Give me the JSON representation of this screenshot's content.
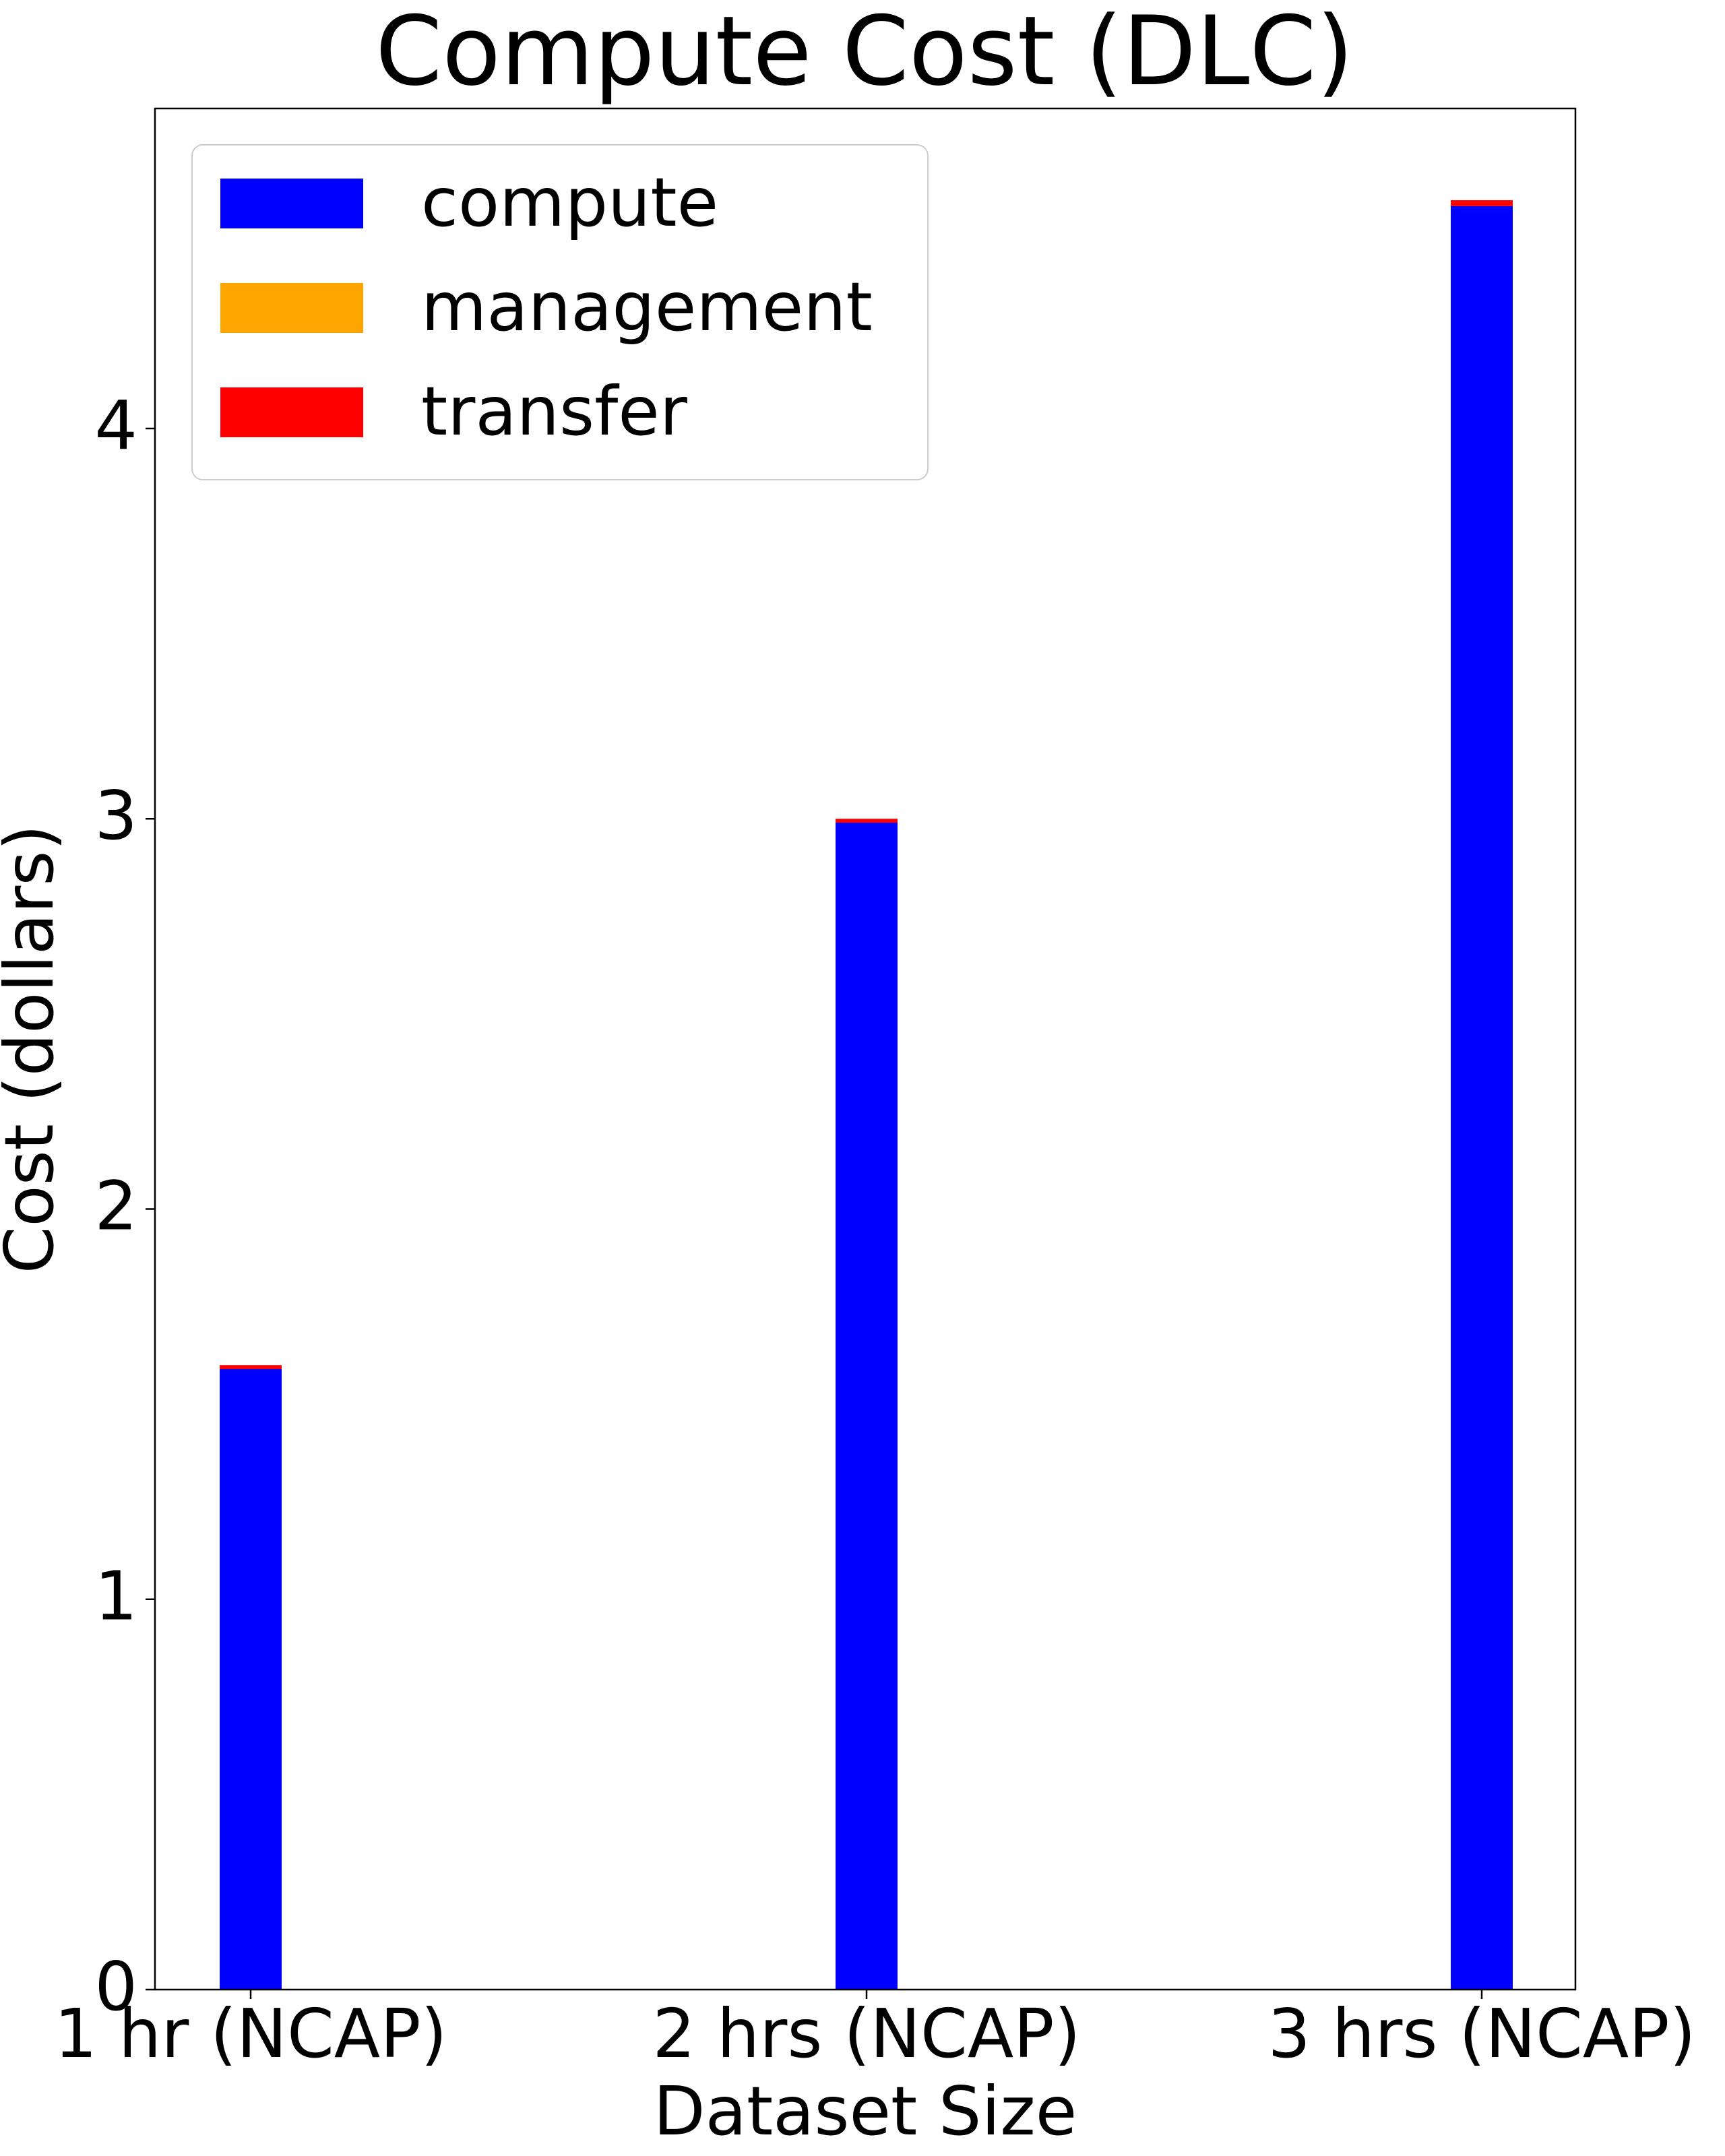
{
  "chart_data": {
    "type": "bar",
    "stacked": true,
    "title": "Compute Cost (DLC)",
    "xlabel": "Dataset Size",
    "ylabel": "Cost (dollars)",
    "categories": [
      "1 hr (NCAP)",
      "2 hrs (NCAP)",
      "3 hrs (NCAP)"
    ],
    "series": [
      {
        "name": "compute",
        "color": "#0000ff",
        "values": [
          1.59,
          2.99,
          4.57
        ]
      },
      {
        "name": "management",
        "color": "#ffa500",
        "values": [
          0.0,
          0.0,
          0.0
        ]
      },
      {
        "name": "transfer",
        "color": "#ff0000",
        "values": [
          0.01,
          0.01,
          0.015
        ]
      }
    ],
    "ylim": [
      0,
      4.82
    ],
    "yticks": [
      "0",
      "1",
      "2",
      "3",
      "4"
    ],
    "grid": false,
    "legend_position": "top-left"
  }
}
